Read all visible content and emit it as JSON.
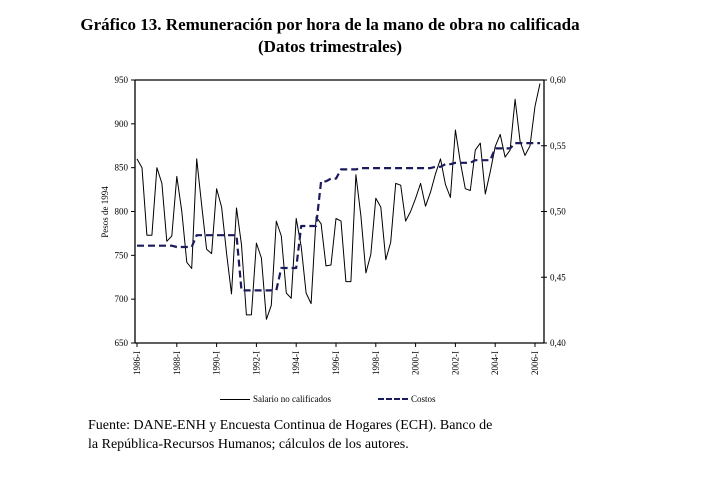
{
  "chart_data": {
    "type": "line",
    "title": "Gráfico 13. Remuneración por hora de la mano de obra no calificada",
    "subtitle": "(Datos trimestrales)",
    "ylabel": "Pesos de 1994",
    "ylim": [
      650,
      950
    ],
    "y_ticks": [
      "650",
      "700",
      "750",
      "800",
      "850",
      "900",
      "950"
    ],
    "y2lim": [
      0.4,
      0.6
    ],
    "y2_ticks": [
      "0,40",
      "0,45",
      "0,50",
      "0,55",
      "0,60"
    ],
    "x_ticks": [
      "1986-I",
      "1988-I",
      "1990-I",
      "1992-I",
      "1994-I",
      "1996-I",
      "1998-I",
      "2000-I",
      "2002-I",
      "2004-I",
      "2006-I"
    ],
    "x_start": "1986-I",
    "frequency": "quarterly",
    "grid": false,
    "legend_position": "bottom",
    "series": [
      {
        "name": "Salario no calificados",
        "axis": "left",
        "color": "#000000",
        "style": "solid",
        "values": [
          860,
          850,
          773,
          773,
          850,
          832,
          766,
          772,
          840,
          800,
          742,
          735,
          860,
          807,
          757,
          752,
          826,
          805,
          752,
          706,
          804,
          762,
          682,
          682,
          764,
          747,
          677,
          693,
          789,
          772,
          707,
          701,
          792,
          760,
          707,
          695,
          794,
          786,
          738,
          739,
          792,
          789,
          720,
          720,
          842,
          795,
          730,
          751,
          815,
          805,
          745,
          765,
          832,
          830,
          789,
          800,
          815,
          832,
          806,
          822,
          843,
          860,
          831,
          816,
          893,
          856,
          826,
          824,
          870,
          878,
          820,
          845,
          874,
          888,
          862,
          870,
          928,
          880,
          864,
          875,
          920,
          946
        ]
      },
      {
        "name": "Costos",
        "axis": "right",
        "color": "#1a1a5c",
        "style": "dashed",
        "values": [
          0.474,
          0.474,
          0.474,
          0.474,
          0.474,
          0.474,
          0.474,
          0.474,
          0.473,
          0.473,
          0.473,
          0.473,
          0.482,
          0.482,
          0.482,
          0.482,
          0.482,
          0.482,
          0.482,
          0.482,
          0.482,
          0.44,
          0.44,
          0.44,
          0.44,
          0.44,
          0.44,
          0.44,
          0.44,
          0.457,
          0.457,
          0.457,
          0.457,
          0.489,
          0.489,
          0.489,
          0.489,
          0.523,
          0.523,
          0.525,
          0.525,
          0.532,
          0.532,
          0.532,
          0.532,
          0.533,
          0.533,
          0.533,
          0.533,
          0.533,
          0.533,
          0.533,
          0.533,
          0.533,
          0.533,
          0.533,
          0.533,
          0.533,
          0.533,
          0.533,
          0.534,
          0.534,
          0.536,
          0.536,
          0.537,
          0.537,
          0.537,
          0.537,
          0.539,
          0.539,
          0.539,
          0.539,
          0.548,
          0.548,
          0.548,
          0.548,
          0.552,
          0.552,
          0.552,
          0.552,
          0.552,
          0.552
        ]
      }
    ]
  },
  "footer": {
    "source_line1": "Fuente: DANE-ENH y Encuesta Continua de Hogares (ECH). Banco de",
    "source_line2": "la República-Recursos Humanos; cálculos de los autores."
  }
}
